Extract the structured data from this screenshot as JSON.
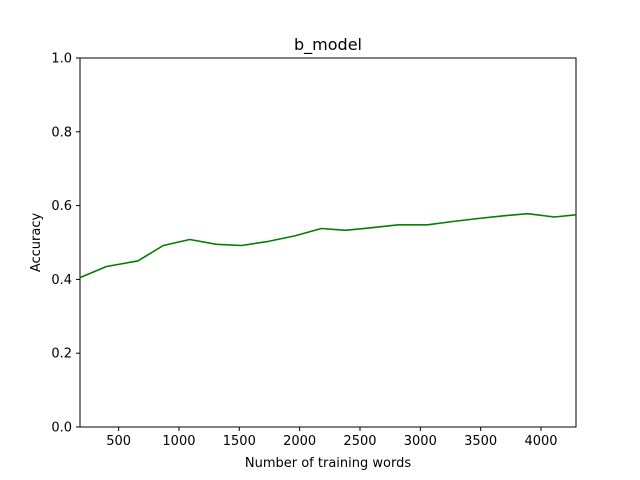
{
  "chart_data": {
    "type": "line",
    "title": "b_model",
    "xlabel": "Number of training words",
    "ylabel": "Accuracy",
    "xlim": [
      180,
      4290
    ],
    "ylim": [
      0.0,
      1.0
    ],
    "xticks": [
      500,
      1000,
      1500,
      2000,
      2500,
      3000,
      3500,
      4000
    ],
    "xtick_labels": [
      "500",
      "1000",
      "1500",
      "2000",
      "2500",
      "3000",
      "3500",
      "4000"
    ],
    "yticks": [
      0.0,
      0.2,
      0.4,
      0.6,
      0.8,
      1.0
    ],
    "ytick_labels": [
      "0.0",
      "0.2",
      "0.4",
      "0.6",
      "0.8",
      "1.0"
    ],
    "grid": false,
    "series": [
      {
        "color": "#008000",
        "x": [
          180,
          400,
          660,
          870,
          1090,
          1310,
          1520,
          1740,
          1960,
          2180,
          2380,
          2600,
          2820,
          3060,
          3270,
          3480,
          3680,
          3890,
          4110,
          4290
        ],
        "y": [
          0.405,
          0.435,
          0.45,
          0.492,
          0.508,
          0.495,
          0.492,
          0.503,
          0.518,
          0.538,
          0.533,
          0.54,
          0.548,
          0.548,
          0.557,
          0.565,
          0.572,
          0.578,
          0.569,
          0.575
        ]
      }
    ]
  }
}
